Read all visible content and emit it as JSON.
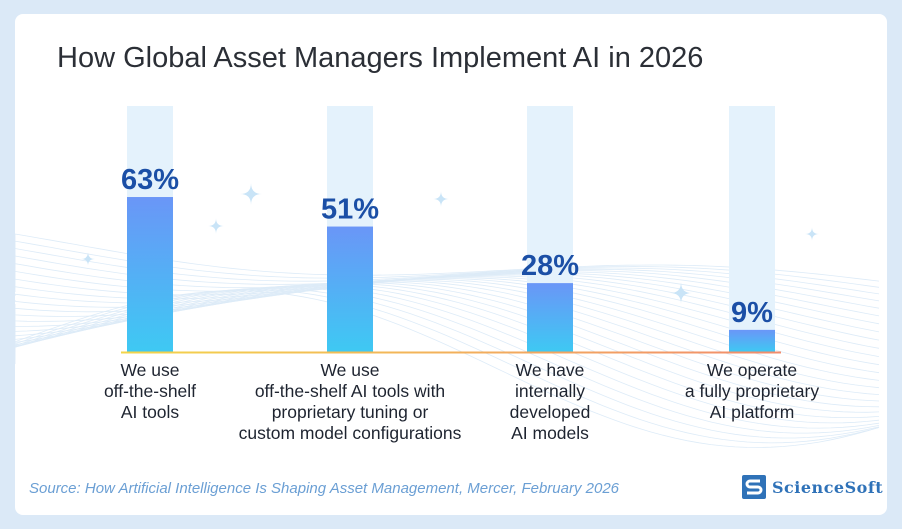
{
  "title": "How Global Asset Managers Implement AI in 2026",
  "source": "Source: How Artificial Intelligence Is Shaping Asset Management, Mercer, February 2026",
  "logo": {
    "text": "ScienceSoft",
    "icon": "sciencesoft-s-logo"
  },
  "colors": {
    "bar_top": "#6a96f7",
    "bar_bottom": "#3ec9f3",
    "value_label": "#1b4fa6",
    "track": "#e4f2fc",
    "baseline_left": "#f3d54a",
    "baseline_right": "#f28c6c"
  },
  "chart_data": {
    "type": "bar",
    "title": "How Global Asset Managers Implement AI in 2026",
    "categories": [
      [
        "We use",
        "off-the-shelf",
        "AI tools"
      ],
      [
        "We use",
        "off-the-shelf AI tools with",
        "proprietary tuning or",
        "custom model configurations"
      ],
      [
        "We have",
        "internally",
        "developed",
        "AI models"
      ],
      [
        "We operate",
        "a fully proprietary",
        "AI platform"
      ]
    ],
    "values": [
      63,
      51,
      28,
      9
    ],
    "value_labels": [
      "63%",
      "51%",
      "28%",
      "9%"
    ],
    "unit": "%",
    "ylim": [
      0,
      100
    ],
    "grid": false,
    "legend": "none"
  }
}
